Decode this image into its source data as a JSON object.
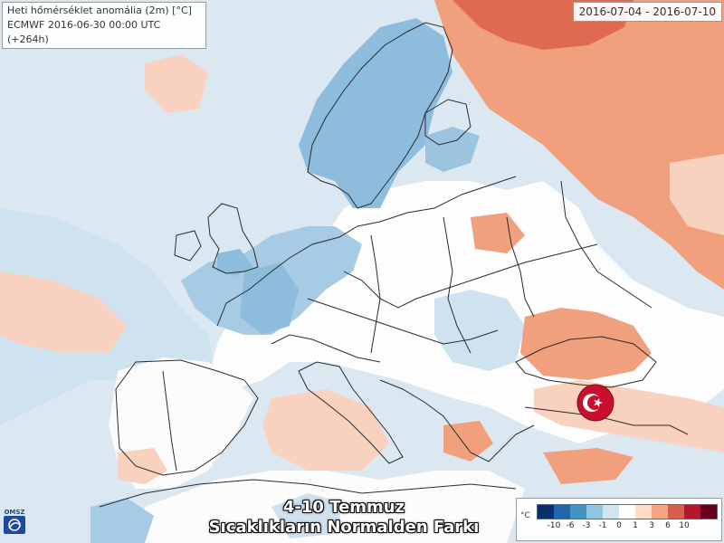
{
  "header": {
    "title": "Heti hőmérséklet anomália (2m) [°C]",
    "run_info": "ECMWF 2016-06-30 00:00 UTC (+264h)"
  },
  "date_range": "2016-07-04 - 2016-07-10",
  "caption": {
    "line1": "4-10 Temmuz",
    "line2": "Sıcaklıkların Normalden Farkı"
  },
  "legend": {
    "unit": "°C",
    "ticks": [
      "-10",
      "-6",
      "-3",
      "-1",
      "0",
      "1",
      "3",
      "6",
      "10"
    ],
    "colors": [
      "#08306b",
      "#2166ac",
      "#4393c3",
      "#92c5de",
      "#d1e5f0",
      "#ffffff",
      "#fddbc7",
      "#f4a582",
      "#d6604d",
      "#b2182b",
      "#67001f"
    ]
  },
  "logo": {
    "text": "OMSZ"
  },
  "colors": {
    "background": "#dbe8f2",
    "light_blue": "#c3daeb",
    "mid_blue": "#8ebcdc",
    "light_red": "#f8d2bf",
    "mid_red": "#f1a07e",
    "strong_red": "#df6a50",
    "border_line": "#2b2b2b"
  },
  "icons": {
    "flag": "turkish-flag-icon",
    "logo": "omsz-logo-icon"
  }
}
